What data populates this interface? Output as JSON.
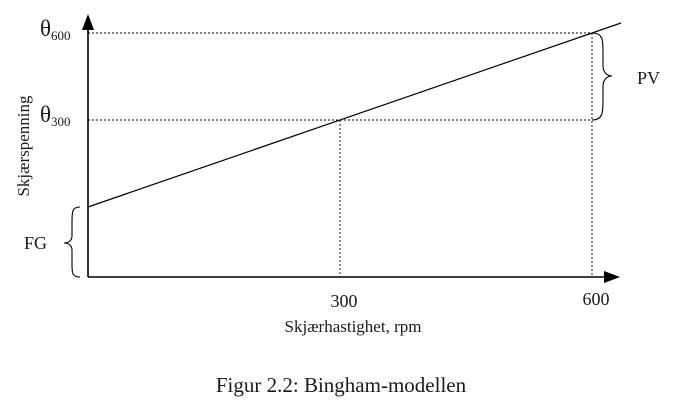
{
  "diagram": {
    "y_labels": {
      "theta600": {
        "symbol": "θ",
        "subscript": "600"
      },
      "theta300": {
        "symbol": "θ",
        "subscript": "300"
      }
    },
    "x_ticks": {
      "t300": "300",
      "t600": "600"
    },
    "axis_labels": {
      "y": "Skjærspenning",
      "x": "Skjærhastighet, rpm"
    },
    "brace_labels": {
      "pv": "PV",
      "fg": "FG"
    },
    "caption": "Figur 2.2: Bingham-modellen"
  }
}
